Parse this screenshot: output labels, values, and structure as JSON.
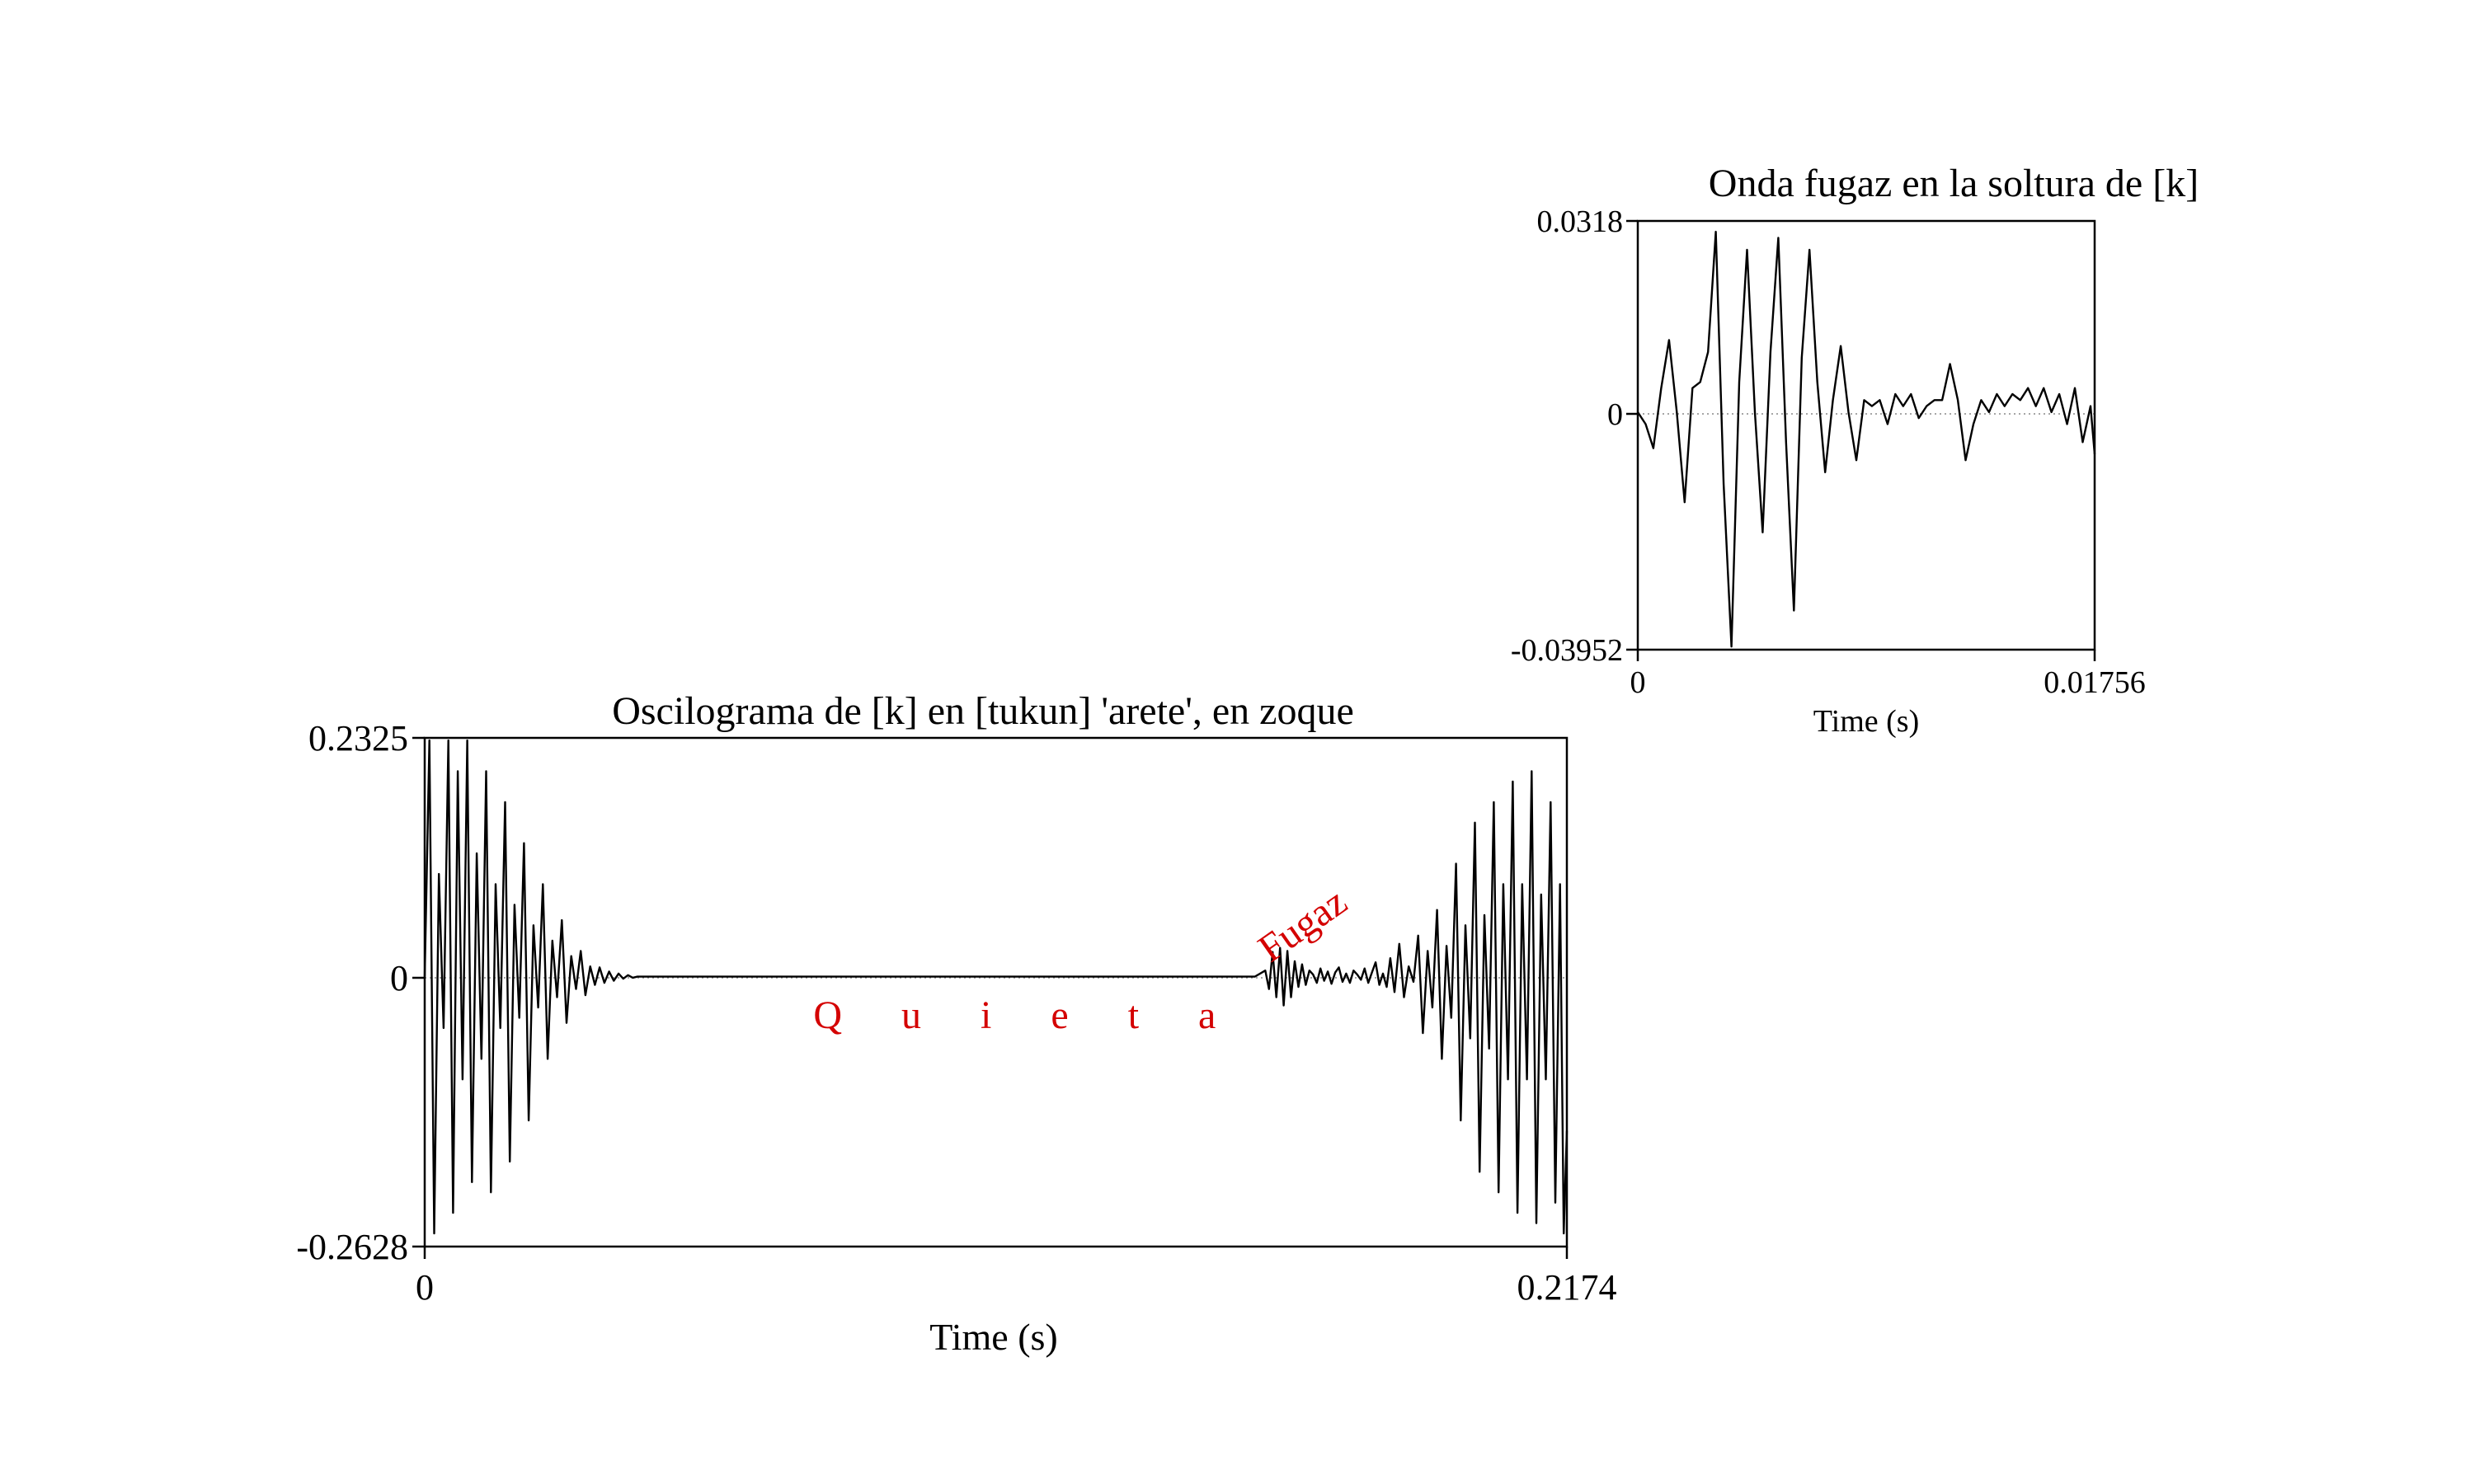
{
  "chart_data": [
    {
      "type": "line",
      "title": "Oscilograma de [k] en [tukun] 'arete', en zoque",
      "xlabel": "Time (s)",
      "ylabel": "",
      "xlim": [
        0,
        0.2174
      ],
      "ylim": [
        -0.2628,
        0.2325
      ],
      "x_tick_labels": [
        "0",
        "0.2174"
      ],
      "y_tick_labels": [
        "0.2325",
        "0",
        "-0.2628"
      ],
      "grid": false,
      "annotations": [
        {
          "text": "Q u i e t a",
          "x": 0.074,
          "y": -0.05
        },
        {
          "text": "Fugaz",
          "x": 0.1685,
          "y": 0.04,
          "rotation": -35
        }
      ],
      "series": [
        {
          "x": [
            0.0,
            0.0009,
            0.0018,
            0.0027,
            0.0036,
            0.0045,
            0.0054,
            0.0063,
            0.0072,
            0.0081,
            0.009,
            0.0099,
            0.0108,
            0.0117,
            0.0126,
            0.0135,
            0.0144,
            0.0153,
            0.0162,
            0.0171,
            0.018,
            0.0189,
            0.0198,
            0.0207,
            0.0216,
            0.0225,
            0.0234,
            0.0243,
            0.0252,
            0.0261,
            0.027,
            0.0279,
            0.0288,
            0.0297,
            0.0306,
            0.0315,
            0.0324,
            0.0333,
            0.0342,
            0.0351,
            0.036,
            0.0369,
            0.0378,
            0.0387,
            0.0396,
            0.0405,
            0.043,
            0.08,
            0.12,
            0.158,
            0.16,
            0.1607,
            0.1614,
            0.1621,
            0.1628,
            0.1635,
            0.1642,
            0.1649,
            0.1656,
            0.1663,
            0.167,
            0.1677,
            0.1684,
            0.1691,
            0.1698,
            0.1705,
            0.1712,
            0.1719,
            0.1726,
            0.1733,
            0.174,
            0.1747,
            0.1754,
            0.1761,
            0.1768,
            0.1775,
            0.1782,
            0.1789,
            0.1796,
            0.1803,
            0.181,
            0.1817,
            0.1824,
            0.1831,
            0.1838,
            0.1846,
            0.1855,
            0.1864,
            0.1873,
            0.1882,
            0.1891,
            0.19,
            0.1909,
            0.1918,
            0.1927,
            0.1936,
            0.1945,
            0.1954,
            0.1963,
            0.1972,
            0.1981,
            0.199,
            0.1999,
            0.2008,
            0.2017,
            0.2026,
            0.2035,
            0.2044,
            0.2053,
            0.2062,
            0.2071,
            0.208,
            0.2089,
            0.2098,
            0.2107,
            0.2116,
            0.2125,
            0.2134,
            0.2143,
            0.2152,
            0.2161,
            0.2168,
            0.2174
          ],
          "values": [
            0.0,
            0.23,
            -0.25,
            0.1,
            -0.05,
            0.23,
            -0.23,
            0.2,
            -0.1,
            0.23,
            -0.2,
            0.12,
            -0.08,
            0.2,
            -0.21,
            0.09,
            -0.05,
            0.17,
            -0.18,
            0.07,
            -0.04,
            0.13,
            -0.14,
            0.05,
            -0.03,
            0.09,
            -0.08,
            0.035,
            -0.02,
            0.055,
            -0.045,
            0.02,
            -0.012,
            0.025,
            -0.018,
            0.01,
            -0.008,
            0.009,
            -0.006,
            0.005,
            -0.004,
            0.003,
            -0.002,
            0.0015,
            -0.001,
            0.0,
            0.0,
            0.0,
            0.0,
            0.0,
            0.006,
            -0.012,
            0.024,
            -0.02,
            0.028,
            -0.028,
            0.025,
            -0.02,
            0.015,
            -0.01,
            0.012,
            -0.008,
            0.006,
            0.002,
            -0.006,
            0.008,
            -0.004,
            0.005,
            -0.007,
            0.004,
            0.009,
            -0.005,
            0.003,
            -0.006,
            0.006,
            0.002,
            -0.003,
            0.008,
            -0.006,
            0.004,
            0.014,
            -0.008,
            0.003,
            -0.01,
            0.018,
            -0.015,
            0.032,
            -0.02,
            0.01,
            -0.005,
            0.04,
            -0.055,
            0.025,
            -0.03,
            0.065,
            -0.08,
            0.03,
            -0.04,
            0.11,
            -0.14,
            0.05,
            -0.06,
            0.15,
            -0.19,
            0.06,
            -0.07,
            0.17,
            -0.21,
            0.09,
            -0.1,
            0.19,
            -0.23,
            0.09,
            -0.1,
            0.2,
            -0.24,
            0.08,
            -0.1,
            0.17,
            -0.22,
            0.09,
            -0.25,
            -0.15
          ]
        }
      ]
    },
    {
      "type": "line",
      "title": "Onda fugaz en la soltura de [k]",
      "xlabel": "Time (s)",
      "ylabel": "",
      "xlim": [
        0,
        0.01756
      ],
      "ylim": [
        -0.03952,
        0.0318
      ],
      "x_tick_labels": [
        "0",
        "0.01756"
      ],
      "y_tick_labels": [
        "0.0318",
        "0",
        "-0.03952"
      ],
      "grid": false,
      "series": [
        {
          "x": [
            0.0,
            0.0003,
            0.0006,
            0.0009,
            0.0012,
            0.0015,
            0.0018,
            0.0021,
            0.0024,
            0.0027,
            0.003,
            0.0033,
            0.0036,
            0.0039,
            0.0042,
            0.0045,
            0.0048,
            0.0051,
            0.0054,
            0.0057,
            0.006,
            0.0063,
            0.0066,
            0.0069,
            0.0072,
            0.0075,
            0.0078,
            0.0081,
            0.0084,
            0.0087,
            0.009,
            0.0093,
            0.0096,
            0.0099,
            0.0102,
            0.0105,
            0.0108,
            0.0111,
            0.0114,
            0.0117,
            0.012,
            0.0123,
            0.0126,
            0.0129,
            0.0132,
            0.0135,
            0.0138,
            0.0141,
            0.0144,
            0.0147,
            0.015,
            0.0153,
            0.0156,
            0.0159,
            0.0162,
            0.0165,
            0.0168,
            0.0171,
            0.0174,
            0.01756
          ],
          "values": [
            0.0,
            -0.002,
            -0.006,
            0.004,
            0.012,
            0.0,
            -0.015,
            0.004,
            0.005,
            0.01,
            0.03,
            -0.012,
            -0.039,
            0.005,
            0.027,
            0.0,
            -0.02,
            0.01,
            0.029,
            -0.005,
            -0.033,
            0.009,
            0.027,
            0.005,
            -0.01,
            0.002,
            0.011,
            0.0,
            -0.008,
            0.002,
            0.001,
            0.002,
            -0.002,
            0.003,
            0.001,
            0.003,
            -0.001,
            0.001,
            0.002,
            0.002,
            0.008,
            0.002,
            -0.008,
            -0.002,
            0.002,
            0.0,
            0.003,
            0.001,
            0.003,
            0.002,
            0.004,
            0.001,
            0.004,
            0.0,
            0.003,
            -0.002,
            0.004,
            -0.005,
            0.001,
            -0.007
          ]
        }
      ]
    }
  ]
}
